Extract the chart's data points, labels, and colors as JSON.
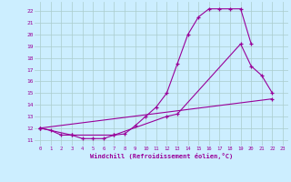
{
  "xlabel": "Windchill (Refroidissement éolien,°C)",
  "bg_color": "#cceeff",
  "grid_color": "#aacccc",
  "line_color": "#990099",
  "xlim": [
    -0.5,
    23.5
  ],
  "ylim": [
    10.5,
    22.8
  ],
  "xticks": [
    0,
    1,
    2,
    3,
    4,
    5,
    6,
    7,
    8,
    9,
    10,
    11,
    12,
    13,
    14,
    15,
    16,
    17,
    18,
    19,
    20,
    21,
    22,
    23
  ],
  "yticks": [
    11,
    12,
    13,
    14,
    15,
    16,
    17,
    18,
    19,
    20,
    21,
    22
  ],
  "lines": [
    {
      "x": [
        0,
        1,
        2,
        3,
        4,
        5,
        6,
        7,
        8,
        9,
        10,
        11,
        12,
        13,
        14,
        15,
        16,
        17,
        18,
        19,
        20
      ],
      "y": [
        12.0,
        11.8,
        11.4,
        11.4,
        11.1,
        11.1,
        11.1,
        11.4,
        11.5,
        12.2,
        13.0,
        13.8,
        15.0,
        17.5,
        20.0,
        21.5,
        22.2,
        22.2,
        22.2,
        22.2,
        19.2
      ]
    },
    {
      "x": [
        0,
        3,
        7,
        12,
        13,
        19,
        20,
        21,
        22
      ],
      "y": [
        12.0,
        11.4,
        11.4,
        13.0,
        13.2,
        19.2,
        17.3,
        16.5,
        15.0
      ]
    },
    {
      "x": [
        0,
        22
      ],
      "y": [
        12.0,
        14.5
      ]
    }
  ]
}
